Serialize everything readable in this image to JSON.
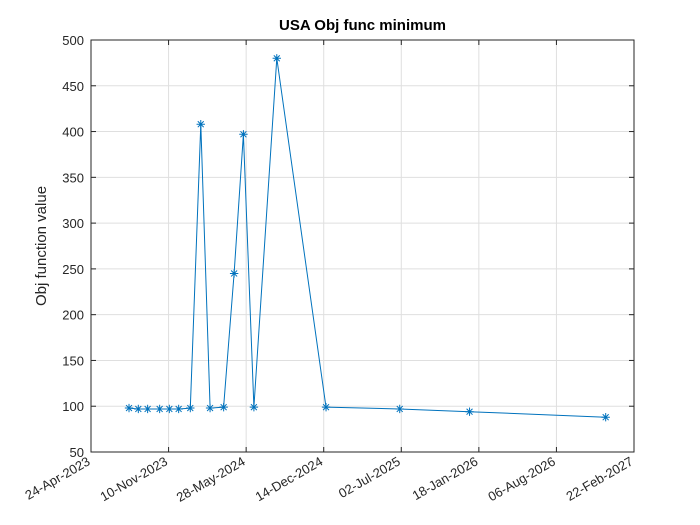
{
  "chart_data": {
    "type": "line",
    "title": "USA Obj func minimum",
    "xlabel": "",
    "ylabel": "Obj function value",
    "ylim": [
      50,
      500
    ],
    "xlim": [
      "2023-04-24",
      "2027-02-22"
    ],
    "y_ticks": [
      50,
      100,
      150,
      200,
      250,
      300,
      350,
      400,
      450,
      500
    ],
    "x_ticks": [
      {
        "date": "2023-04-24",
        "label": "24-Apr-2023"
      },
      {
        "date": "2023-11-10",
        "label": "10-Nov-2023"
      },
      {
        "date": "2024-05-28",
        "label": "28-May-2024"
      },
      {
        "date": "2024-12-14",
        "label": "14-Dec-2024"
      },
      {
        "date": "2025-07-02",
        "label": "02-Jul-2025"
      },
      {
        "date": "2026-01-18",
        "label": "18-Jan-2026"
      },
      {
        "date": "2026-08-06",
        "label": "06-Aug-2026"
      },
      {
        "date": "2027-02-22",
        "label": "22-Feb-2027"
      }
    ],
    "grid": true,
    "series": [
      {
        "color": "#0072BD",
        "marker": "asterisk",
        "points": [
          {
            "x": "2023-07-31",
            "y": 98
          },
          {
            "x": "2023-08-24",
            "y": 97
          },
          {
            "x": "2023-09-17",
            "y": 97
          },
          {
            "x": "2023-10-18",
            "y": 97
          },
          {
            "x": "2023-11-12",
            "y": 97
          },
          {
            "x": "2023-12-06",
            "y": 97
          },
          {
            "x": "2024-01-05",
            "y": 98
          },
          {
            "x": "2024-02-01",
            "y": 408
          },
          {
            "x": "2024-02-25",
            "y": 98
          },
          {
            "x": "2024-03-31",
            "y": 99
          },
          {
            "x": "2024-04-27",
            "y": 245
          },
          {
            "x": "2024-05-21",
            "y": 397
          },
          {
            "x": "2024-06-17",
            "y": 99
          },
          {
            "x": "2024-08-15",
            "y": 480
          },
          {
            "x": "2024-12-20",
            "y": 99
          },
          {
            "x": "2025-06-28",
            "y": 97
          },
          {
            "x": "2025-12-25",
            "y": 94
          },
          {
            "x": "2026-12-11",
            "y": 88
          }
        ]
      }
    ]
  }
}
